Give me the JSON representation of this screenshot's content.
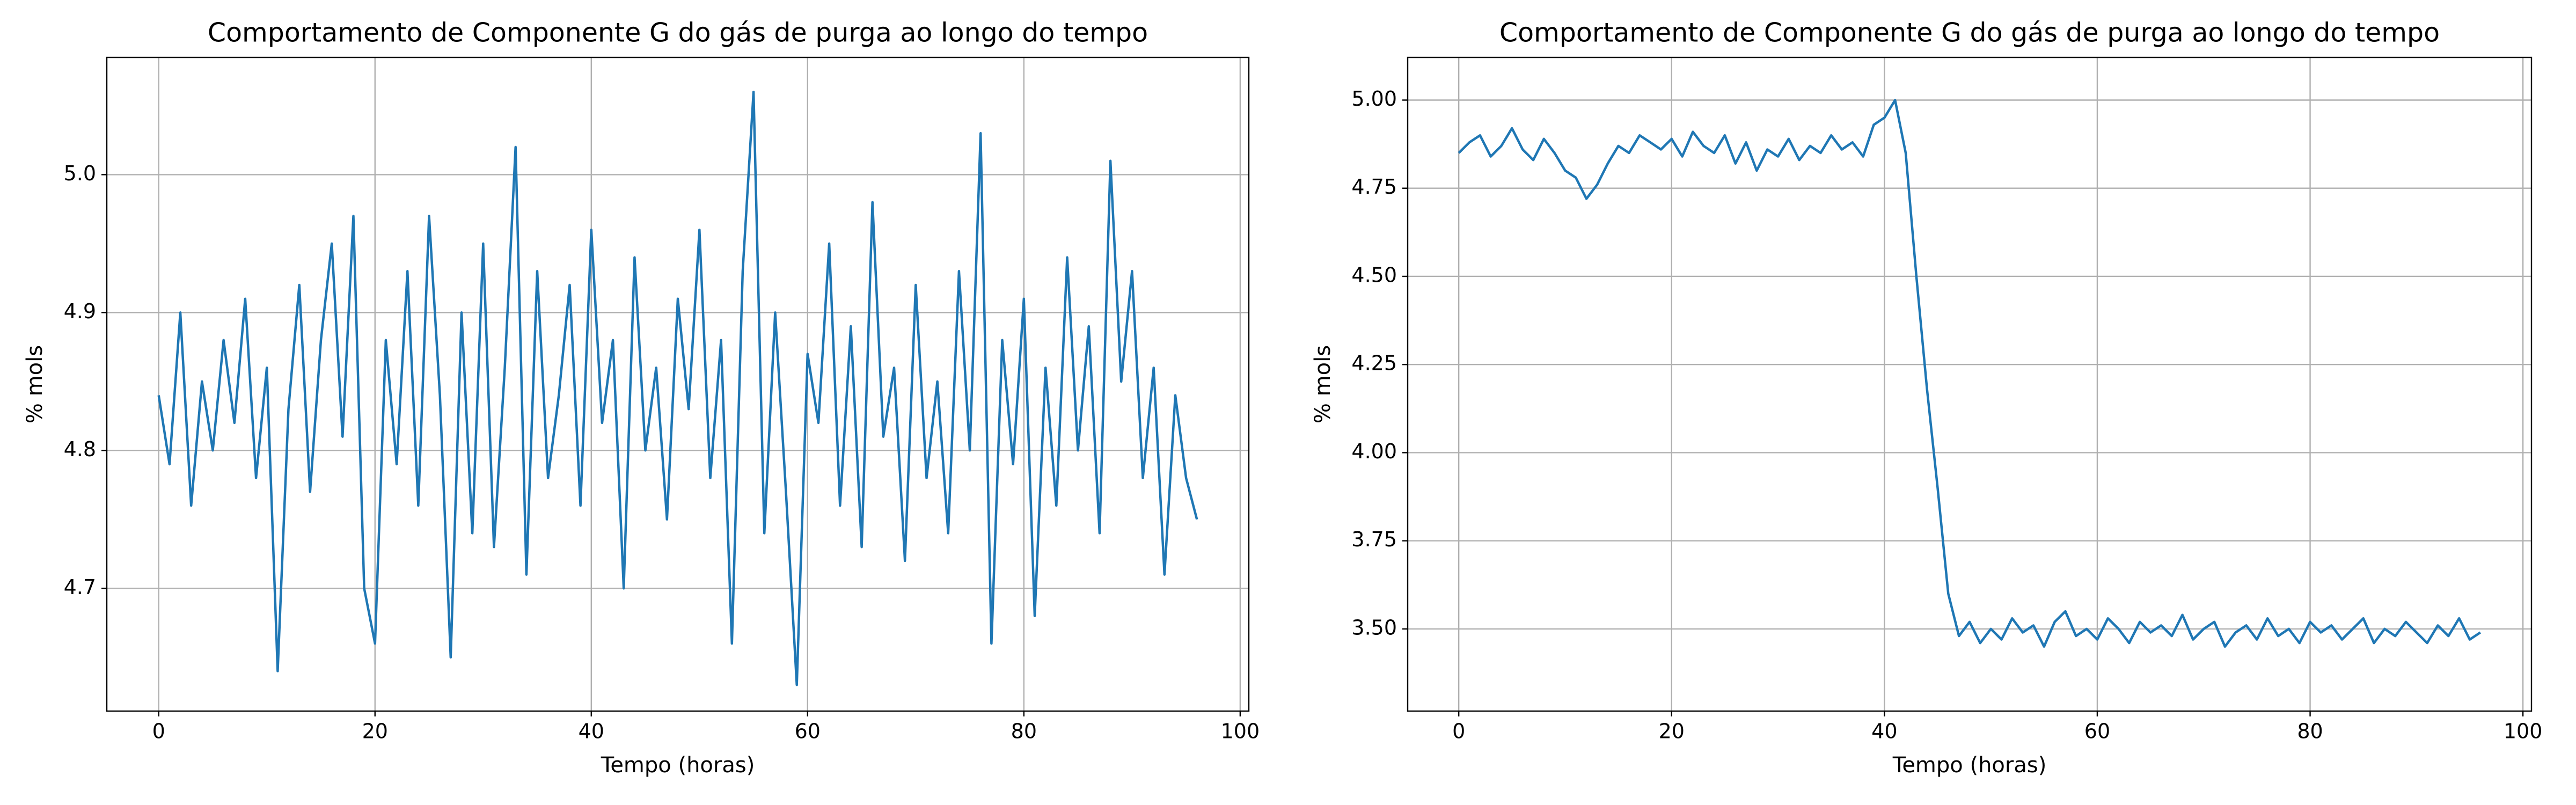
{
  "chart_data": [
    {
      "type": "line",
      "title": "Comportamento de Componente G do gás de purga ao longo do tempo",
      "xlabel": "Tempo (horas)",
      "ylabel": "% mols",
      "color": "#1f77b4",
      "grid": true,
      "xlim": [
        -4.8,
        100.8
      ],
      "ylim": [
        4.611,
        5.085
      ],
      "xticks": [
        0,
        20,
        40,
        60,
        80,
        100
      ],
      "yticks": [
        4.7,
        4.8,
        4.9,
        {
          "value": 5,
          "label": "5.0"
        }
      ],
      "x": [
        0,
        1,
        2,
        3,
        4,
        5,
        6,
        7,
        8,
        9,
        10,
        11,
        12,
        13,
        14,
        15,
        16,
        17,
        18,
        19,
        20,
        21,
        22,
        23,
        24,
        25,
        26,
        27,
        28,
        29,
        30,
        31,
        32,
        33,
        34,
        35,
        36,
        37,
        38,
        39,
        40,
        41,
        42,
        43,
        44,
        45,
        46,
        47,
        48,
        49,
        50,
        51,
        52,
        53,
        54,
        55,
        56,
        57,
        58,
        59,
        60,
        61,
        62,
        63,
        64,
        65,
        66,
        67,
        68,
        69,
        70,
        71,
        72,
        73,
        74,
        75,
        76,
        77,
        78,
        79,
        80,
        81,
        82,
        83,
        84,
        85,
        86,
        87,
        88,
        89,
        90,
        91,
        92,
        93,
        94,
        95,
        96
      ],
      "values": [
        4.84,
        4.79,
        4.9,
        4.76,
        4.85,
        4.8,
        4.88,
        4.82,
        4.91,
        4.78,
        4.86,
        4.64,
        4.83,
        4.92,
        4.77,
        4.88,
        4.95,
        4.81,
        4.97,
        4.7,
        4.66,
        4.88,
        4.79,
        4.93,
        4.76,
        4.97,
        4.84,
        4.65,
        4.9,
        4.74,
        4.95,
        4.73,
        4.86,
        5.02,
        4.71,
        4.93,
        4.78,
        4.84,
        4.92,
        4.76,
        4.96,
        4.82,
        4.88,
        4.7,
        4.94,
        4.8,
        4.86,
        4.75,
        4.91,
        4.83,
        4.96,
        4.78,
        4.88,
        4.66,
        4.93,
        5.06,
        4.74,
        4.9,
        4.77,
        4.63,
        4.87,
        4.82,
        4.95,
        4.76,
        4.89,
        4.73,
        4.98,
        4.81,
        4.86,
        4.72,
        4.92,
        4.78,
        4.85,
        4.74,
        4.93,
        4.8,
        5.03,
        4.66,
        4.88,
        4.79,
        4.91,
        4.68,
        4.86,
        4.76,
        4.94,
        4.8,
        4.89,
        4.74,
        5.01,
        4.85,
        4.93,
        4.78,
        4.86,
        4.71,
        4.84,
        4.78,
        4.75
      ]
    },
    {
      "type": "line",
      "title": "Comportamento de Componente G do gás de purga ao longo do tempo",
      "xlabel": "Tempo (horas)",
      "ylabel": "% mols",
      "color": "#1f77b4",
      "grid": true,
      "xlim": [
        -4.8,
        100.8
      ],
      "ylim": [
        3.267,
        5.121
      ],
      "xticks": [
        0,
        20,
        40,
        60,
        80,
        100
      ],
      "yticks": [
        {
          "value": 3.5,
          "label": "3.50"
        },
        3.75,
        {
          "value": 4,
          "label": "4.00"
        },
        4.25,
        {
          "value": 4.5,
          "label": "4.50"
        },
        4.75,
        {
          "value": 5,
          "label": "5.00"
        }
      ],
      "x": [
        0,
        1,
        2,
        3,
        4,
        5,
        6,
        7,
        8,
        9,
        10,
        11,
        12,
        13,
        14,
        15,
        16,
        17,
        18,
        19,
        20,
        21,
        22,
        23,
        24,
        25,
        26,
        27,
        28,
        29,
        30,
        31,
        32,
        33,
        34,
        35,
        36,
        37,
        38,
        39,
        40,
        41,
        42,
        43,
        44,
        45,
        46,
        47,
        48,
        49,
        50,
        51,
        52,
        53,
        54,
        55,
        56,
        57,
        58,
        59,
        60,
        61,
        62,
        63,
        64,
        65,
        66,
        67,
        68,
        69,
        70,
        71,
        72,
        73,
        74,
        75,
        76,
        77,
        78,
        79,
        80,
        81,
        82,
        83,
        84,
        85,
        86,
        87,
        88,
        89,
        90,
        91,
        92,
        93,
        94,
        95,
        96
      ],
      "values": [
        4.85,
        4.88,
        4.9,
        4.84,
        4.87,
        4.92,
        4.86,
        4.83,
        4.89,
        4.85,
        4.8,
        4.78,
        4.72,
        4.76,
        4.82,
        4.87,
        4.85,
        4.9,
        4.88,
        4.86,
        4.89,
        4.84,
        4.91,
        4.87,
        4.85,
        4.9,
        4.82,
        4.88,
        4.8,
        4.86,
        4.84,
        4.89,
        4.83,
        4.87,
        4.85,
        4.9,
        4.86,
        4.88,
        4.84,
        4.93,
        4.95,
        5.0,
        4.85,
        4.5,
        4.18,
        3.9,
        3.6,
        3.48,
        3.52,
        3.46,
        3.5,
        3.47,
        3.53,
        3.49,
        3.51,
        3.45,
        3.52,
        3.55,
        3.48,
        3.5,
        3.47,
        3.53,
        3.5,
        3.46,
        3.52,
        3.49,
        3.51,
        3.48,
        3.54,
        3.47,
        3.5,
        3.52,
        3.45,
        3.49,
        3.51,
        3.47,
        3.53,
        3.48,
        3.5,
        3.46,
        3.52,
        3.49,
        3.51,
        3.47,
        3.5,
        3.53,
        3.46,
        3.5,
        3.48,
        3.52,
        3.49,
        3.46,
        3.51,
        3.48,
        3.53,
        3.47,
        3.49
      ]
    }
  ]
}
